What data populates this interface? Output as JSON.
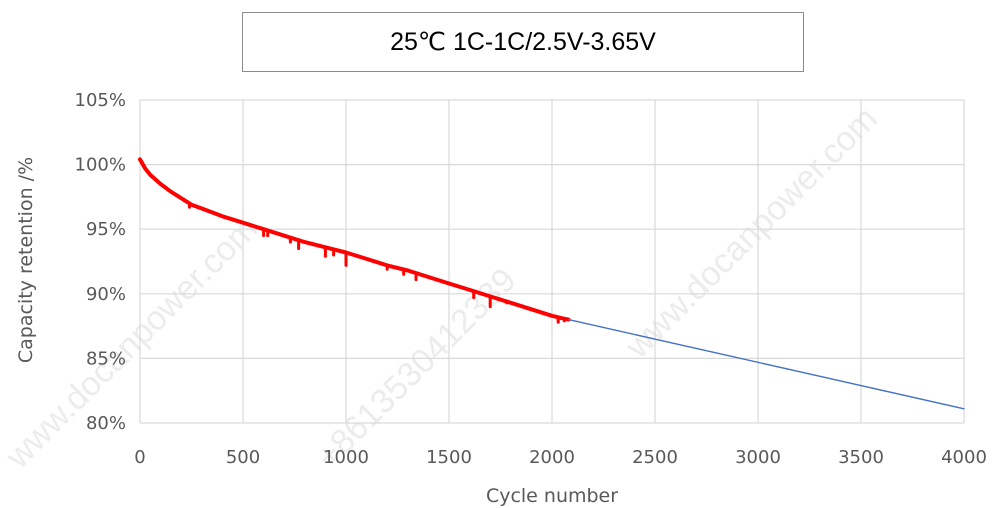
{
  "watermarks": {
    "left": "www.docanpower.com",
    "middle": "+8613530412339",
    "right": "www.docanpower.com"
  },
  "chart_data": {
    "type": "line",
    "title": "25℃ 1C-1C/2.5V-3.65V",
    "xlabel": "Cycle number",
    "ylabel": "Capacity retention /%",
    "xlim": [
      0,
      4000
    ],
    "ylim": [
      80,
      105
    ],
    "x_ticks": [
      0,
      500,
      1000,
      1500,
      2000,
      2500,
      3000,
      3500,
      4000
    ],
    "y_ticks": [
      80,
      85,
      90,
      95,
      100,
      105
    ],
    "y_tick_labels": [
      "80%",
      "85%",
      "90%",
      "95%",
      "100%",
      "105%"
    ],
    "grid": true,
    "legend": "none",
    "series": [
      {
        "color": "#ff0000",
        "style": "thick measured",
        "x": [
          0,
          25,
          50,
          100,
          150,
          200,
          250,
          300,
          400,
          500,
          600,
          700,
          800,
          900,
          1000,
          1100,
          1200,
          1300,
          1400,
          1500,
          1600,
          1700,
          1800,
          1900,
          2000,
          2050,
          2080
        ],
        "y": [
          100.4,
          99.7,
          99.2,
          98.5,
          97.9,
          97.4,
          96.9,
          96.6,
          96.0,
          95.5,
          95.0,
          94.5,
          94.0,
          93.6,
          93.2,
          92.7,
          92.2,
          91.8,
          91.3,
          90.8,
          90.3,
          89.8,
          89.3,
          88.8,
          88.3,
          88.1,
          88.0
        ],
        "dips": [
          {
            "x": 240,
            "y": 96.7
          },
          {
            "x": 600,
            "y": 94.5
          },
          {
            "x": 620,
            "y": 94.5
          },
          {
            "x": 730,
            "y": 94.0
          },
          {
            "x": 770,
            "y": 93.5
          },
          {
            "x": 900,
            "y": 92.9
          },
          {
            "x": 940,
            "y": 93.0
          },
          {
            "x": 1000,
            "y": 92.2
          },
          {
            "x": 1200,
            "y": 91.9
          },
          {
            "x": 1280,
            "y": 91.5
          },
          {
            "x": 1340,
            "y": 91.1
          },
          {
            "x": 1620,
            "y": 89.7
          },
          {
            "x": 1700,
            "y": 89.0
          },
          {
            "x": 1780,
            "y": 89.3
          },
          {
            "x": 2030,
            "y": 87.8
          },
          {
            "x": 2060,
            "y": 87.9
          }
        ]
      },
      {
        "color": "#4472c4",
        "style": "thin projected",
        "x": [
          2080,
          4000
        ],
        "y": [
          88.0,
          81.1
        ]
      }
    ]
  }
}
